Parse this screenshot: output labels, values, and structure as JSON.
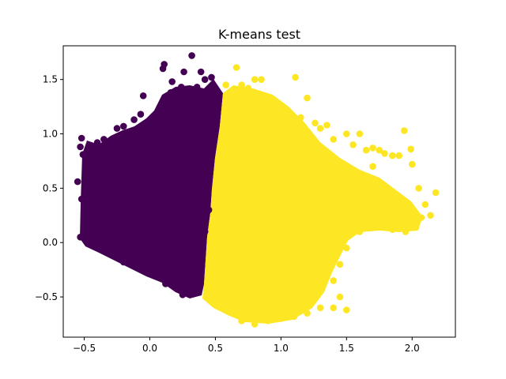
{
  "chart_data": {
    "type": "scatter",
    "title": "K-means test",
    "xlabel": "",
    "ylabel": "",
    "xlim": [
      -0.66,
      2.33
    ],
    "ylim": [
      -0.87,
      1.81
    ],
    "xticks": [
      -0.5,
      0.0,
      0.5,
      1.0,
      1.5,
      2.0
    ],
    "yticks": [
      -0.5,
      0.0,
      0.5,
      1.0,
      1.5
    ],
    "xtick_labels": [
      "−0.5",
      "0.0",
      "0.5",
      "1.0",
      "1.5",
      "2.0"
    ],
    "ytick_labels": [
      "−0.5",
      "0.0",
      "0.5",
      "1.0",
      "1.5"
    ],
    "grid": false,
    "legend": false,
    "series": [
      {
        "cluster": 0,
        "color": "#440154",
        "points": [
          [
            -0.52,
            0.96
          ],
          [
            -0.53,
            0.88
          ],
          [
            -0.51,
            0.81
          ],
          [
            -0.55,
            0.56
          ],
          [
            -0.53,
            0.05
          ],
          [
            -0.5,
            0.3
          ],
          [
            -0.45,
            0.6
          ],
          [
            -0.4,
            0.92
          ],
          [
            -0.35,
            0.95
          ],
          [
            -0.3,
            0.9
          ],
          [
            -0.25,
            1.05
          ],
          [
            -0.2,
            1.07
          ],
          [
            -0.12,
            1.13
          ],
          [
            -0.1,
            1.0
          ],
          [
            -0.07,
            1.18
          ],
          [
            -0.05,
            1.35
          ],
          [
            0.02,
            1.15
          ],
          [
            0.05,
            1.1
          ],
          [
            0.1,
            1.2
          ],
          [
            0.1,
            1.6
          ],
          [
            0.11,
            1.64
          ],
          [
            0.16,
            1.38
          ],
          [
            0.2,
            1.31
          ],
          [
            0.17,
            1.48
          ],
          [
            0.24,
            1.43
          ],
          [
            0.26,
            1.57
          ],
          [
            0.31,
            1.33
          ],
          [
            0.32,
            1.72
          ],
          [
            0.36,
            1.43
          ],
          [
            0.39,
            1.57
          ],
          [
            0.42,
            1.5
          ],
          [
            0.47,
            1.52
          ],
          [
            0.5,
            1.4
          ],
          [
            0.52,
            1.3
          ],
          [
            0.5,
            1.05
          ],
          [
            0.45,
            0.8
          ],
          [
            0.42,
            0.6
          ],
          [
            0.45,
            0.3
          ],
          [
            0.42,
            0.1
          ],
          [
            0.4,
            -0.05
          ],
          [
            0.37,
            -0.2
          ],
          [
            0.35,
            -0.35
          ],
          [
            0.32,
            -0.45
          ],
          [
            0.25,
            -0.48
          ],
          [
            0.2,
            -0.42
          ],
          [
            0.12,
            -0.38
          ],
          [
            0.05,
            -0.3
          ],
          [
            0.0,
            -0.28
          ],
          [
            -0.05,
            -0.25
          ],
          [
            -0.1,
            -0.2
          ],
          [
            -0.2,
            -0.18
          ],
          [
            -0.25,
            -0.13
          ],
          [
            -0.3,
            -0.1
          ],
          [
            -0.35,
            -0.08
          ],
          [
            -0.4,
            -0.02
          ],
          [
            -0.45,
            0.02
          ],
          [
            -0.48,
            0.15
          ],
          [
            -0.52,
            0.4
          ],
          [
            -0.3,
            0.3
          ],
          [
            -0.2,
            0.5
          ],
          [
            -0.1,
            0.7
          ],
          [
            0.0,
            0.4
          ],
          [
            0.1,
            0.2
          ],
          [
            0.2,
            0.0
          ],
          [
            0.3,
            0.5
          ],
          [
            0.2,
            0.85
          ],
          [
            0.0,
            0.9
          ],
          [
            -0.15,
            0.2
          ],
          [
            0.1,
            -0.1
          ],
          [
            0.3,
            1.1
          ]
        ]
      },
      {
        "cluster": 1,
        "color": "#fde725",
        "points": [
          [
            0.58,
            1.45
          ],
          [
            0.61,
            1.38
          ],
          [
            0.66,
            1.61
          ],
          [
            0.7,
            1.45
          ],
          [
            0.75,
            1.42
          ],
          [
            0.8,
            1.5
          ],
          [
            0.85,
            1.5
          ],
          [
            0.9,
            1.3
          ],
          [
            0.95,
            1.25
          ],
          [
            1.0,
            1.15
          ],
          [
            1.05,
            1.1
          ],
          [
            1.11,
            1.52
          ],
          [
            1.15,
            1.15
          ],
          [
            1.2,
            1.33
          ],
          [
            1.26,
            1.1
          ],
          [
            1.3,
            1.05
          ],
          [
            1.35,
            1.08
          ],
          [
            1.4,
            0.95
          ],
          [
            1.5,
            1.0
          ],
          [
            1.55,
            0.9
          ],
          [
            1.6,
            1.0
          ],
          [
            1.65,
            0.85
          ],
          [
            1.7,
            0.87
          ],
          [
            1.75,
            0.85
          ],
          [
            1.79,
            0.82
          ],
          [
            1.85,
            0.8
          ],
          [
            1.9,
            0.8
          ],
          [
            1.94,
            1.03
          ],
          [
            1.99,
            0.86
          ],
          [
            2.0,
            0.72
          ],
          [
            2.05,
            0.5
          ],
          [
            2.1,
            0.35
          ],
          [
            2.0,
            0.3
          ],
          [
            2.07,
            0.23
          ],
          [
            2.03,
            0.14
          ],
          [
            1.95,
            0.1
          ],
          [
            1.85,
            0.12
          ],
          [
            1.8,
            0.2
          ],
          [
            2.18,
            0.46
          ],
          [
            2.14,
            0.25
          ],
          [
            1.7,
            0.25
          ],
          [
            1.6,
            0.1
          ],
          [
            1.5,
            -0.05
          ],
          [
            1.45,
            -0.2
          ],
          [
            1.4,
            -0.35
          ],
          [
            1.45,
            -0.5
          ],
          [
            1.5,
            -0.62
          ],
          [
            1.4,
            -0.6
          ],
          [
            1.3,
            -0.6
          ],
          [
            1.2,
            -0.65
          ],
          [
            1.1,
            -0.68
          ],
          [
            1.0,
            -0.7
          ],
          [
            0.9,
            -0.72
          ],
          [
            0.8,
            -0.75
          ],
          [
            0.7,
            -0.72
          ],
          [
            0.6,
            -0.6
          ],
          [
            0.5,
            -0.5
          ],
          [
            0.52,
            -0.3
          ],
          [
            0.58,
            0.0
          ],
          [
            0.6,
            0.4
          ],
          [
            0.65,
            0.8
          ],
          [
            0.7,
            1.1
          ],
          [
            0.8,
            0.6
          ],
          [
            0.9,
            0.2
          ],
          [
            1.0,
            -0.2
          ],
          [
            1.1,
            0.4
          ],
          [
            1.2,
            0.8
          ],
          [
            1.3,
            0.2
          ],
          [
            1.4,
            0.5
          ],
          [
            1.6,
            0.5
          ],
          [
            0.75,
            -0.4
          ],
          [
            0.95,
            0.95
          ],
          [
            1.2,
            -0.3
          ],
          [
            1.7,
            0.7
          ],
          [
            1.55,
            0.3
          ]
        ]
      }
    ]
  }
}
